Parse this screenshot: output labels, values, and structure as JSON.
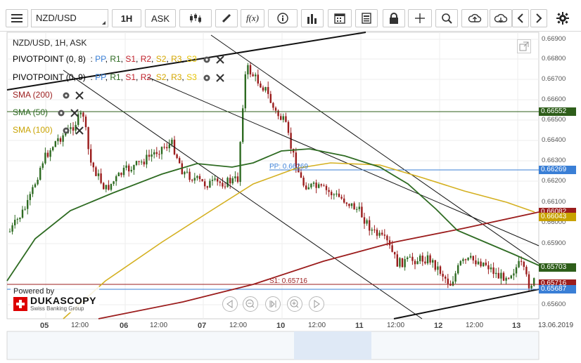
{
  "toolbar": {
    "symbol": "NZD/USD",
    "timeframe": "1H",
    "side": "ASK",
    "fx_label": "f(x)"
  },
  "chart_title": "NZD/USD, 1H, ASK",
  "indicators": {
    "pivot1": {
      "name": "PIVOTPOINT (0, 8)",
      "levels": [
        "PP",
        "R1",
        "S1",
        "R2",
        "S2",
        "R3",
        "S3"
      ]
    },
    "pivot2": {
      "name": "PIVOTPOINT (0, 9)",
      "levels": [
        "PP",
        "R1",
        "S1",
        "R2",
        "S2",
        "R3",
        "S3"
      ]
    },
    "sma200": "SMA (200)",
    "sma50": "SMA (50)",
    "sma100": "SMA (100)"
  },
  "level_labels": {
    "pp": "PP: 0.66269",
    "s1": "S1: 0.65716"
  },
  "price_tags": [
    {
      "value": "0.66552",
      "color": "#2e5e1a"
    },
    {
      "value": "0.66269",
      "color": "#3a7fd6"
    },
    {
      "value": "0.66082",
      "color": "#9b1c1c"
    },
    {
      "value": "0.66043",
      "color": "#c8a200"
    },
    {
      "value": "0.65703",
      "color": "#2e5e1a"
    },
    {
      "value": "0.65716",
      "color": "#9b1c1c"
    },
    {
      "value": "0.65687",
      "color": "#3a7fd6"
    }
  ],
  "y_axis": [
    "0.66900",
    "0.66800",
    "0.66700",
    "0.66600",
    "0.66500",
    "0.66400",
    "0.66300",
    "0.66200",
    "0.66100",
    "0.66000",
    "0.65900",
    "0.65700",
    "0.65600"
  ],
  "x_axis": [
    {
      "label": "05",
      "bold": true
    },
    {
      "label": "12:00",
      "bold": false
    },
    {
      "label": "06",
      "bold": true
    },
    {
      "label": "12:00",
      "bold": false
    },
    {
      "label": "07",
      "bold": true
    },
    {
      "label": "12:00",
      "bold": false
    },
    {
      "label": "10",
      "bold": true
    },
    {
      "label": "12:00",
      "bold": false
    },
    {
      "label": "11",
      "bold": true
    },
    {
      "label": "12:00",
      "bold": false
    },
    {
      "label": "12",
      "bold": true
    },
    {
      "label": "12:00",
      "bold": false
    },
    {
      "label": "13",
      "bold": true
    },
    {
      "label": "13.06.2019",
      "bold": false
    }
  ],
  "branding": {
    "powered": "Powered by",
    "name": "DUKASCOPY",
    "sub": "Swiss Banking Group"
  },
  "colors": {
    "sma200": "#9b1c1c",
    "sma50": "#2e6b22",
    "sma100": "#d4b020",
    "bull": "#2e6b22",
    "bear": "#9b1c1c",
    "pp": "#3a7fd6"
  }
}
